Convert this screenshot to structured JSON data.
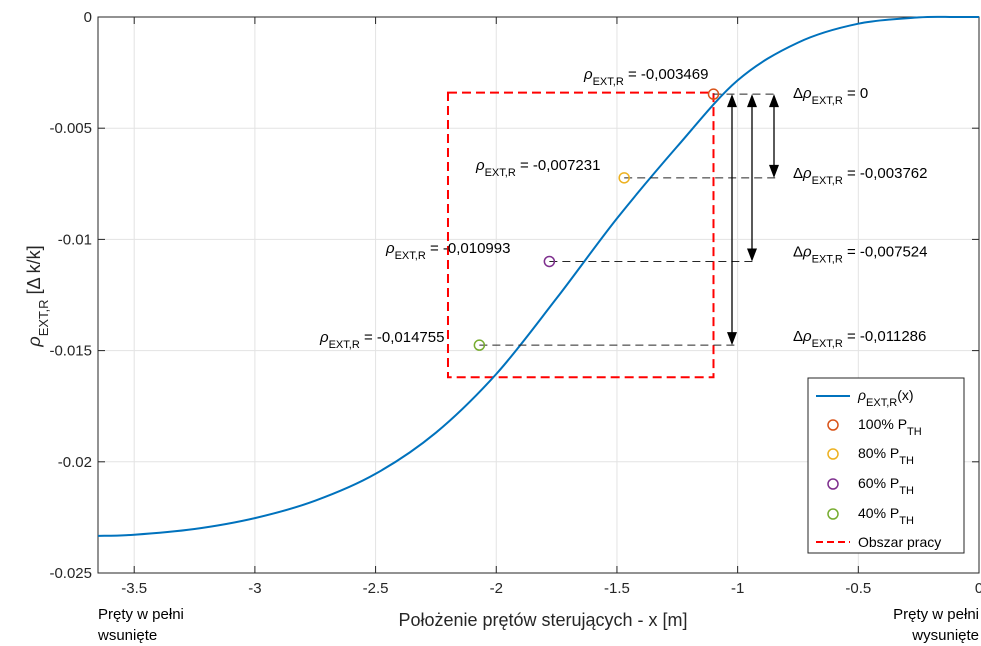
{
  "chart_data": {
    "type": "line",
    "title": "",
    "xlabel": "Położenie prętów sterujących - x [m]",
    "ylabel": "ρ_EXT,R [Δ k/k]",
    "ylabel_parts": {
      "main": "ρ",
      "sub": "EXT,R",
      "rest": " [Δ k/k]"
    },
    "xlim": [
      -3.65,
      0
    ],
    "ylim": [
      -0.025,
      0
    ],
    "xticks": [
      -3.5,
      -3,
      -2.5,
      -2,
      -1.5,
      -1,
      -0.5,
      0
    ],
    "xtick_labels": [
      "-3.5",
      "-3",
      "-2.5",
      "-2",
      "-1.5",
      "-1",
      "-0.5",
      "0"
    ],
    "yticks": [
      0,
      -0.005,
      -0.01,
      -0.015,
      -0.02,
      -0.025
    ],
    "ytick_labels": [
      "0",
      "-0.005",
      "-0.01",
      "-0.015",
      "-0.02",
      "-0.025"
    ],
    "grid": true,
    "x_end_labels": {
      "left": [
        "Pręty w pełni",
        "wsunięte"
      ],
      "right": [
        "Pręty w pełni",
        "wysunięte"
      ]
    },
    "curve": {
      "name": "ρ_EXT,R(x)",
      "color": "#0072BD",
      "x": [
        -3.65,
        -3.5,
        -3.25,
        -3.0,
        -2.75,
        -2.5,
        -2.25,
        -2.0,
        -1.75,
        -1.5,
        -1.25,
        -1.0,
        -0.75,
        -0.5,
        -0.25,
        -0.1,
        0.0
      ],
      "y": [
        -0.02333,
        -0.02328,
        -0.02302,
        -0.02253,
        -0.02175,
        -0.02054,
        -0.01869,
        -0.01605,
        -0.01265,
        -0.00906,
        -0.00582,
        -0.00285,
        -0.00115,
        -0.0003,
        -2e-05,
        0.0,
        0.0
      ]
    },
    "points": [
      {
        "name": "100% P",
        "sub": "TH",
        "x": -1.1,
        "y": -0.003469,
        "color": "#D95319",
        "label": "ρ_EXT,R = -0,003469",
        "value_text": " = -0,003469",
        "delta_text": " = 0"
      },
      {
        "name": "80% P",
        "sub": "TH",
        "x": -1.47,
        "y": -0.007231,
        "color": "#EDB120",
        "label": "ρ_EXT,R = -0,007231",
        "value_text": " = -0,007231",
        "delta_text": " = -0,003762"
      },
      {
        "name": "60% P",
        "sub": "TH",
        "x": -1.78,
        "y": -0.010993,
        "color": "#7E2F8E",
        "label": "ρ_EXT,R = -0,010993",
        "value_text": " = -0,010993",
        "delta_text": " = -0,007524"
      },
      {
        "name": "40% P",
        "sub": "TH",
        "x": -2.07,
        "y": -0.014755,
        "color": "#77AC30",
        "label": "ρ_EXT,R = -0,014755",
        "value_text": " = -0,014755",
        "delta_text": " = -0,011286"
      }
    ],
    "work_area": {
      "name": "Obszar pracy",
      "x": [
        -2.2,
        -1.1
      ],
      "y": [
        -0.0162,
        -0.0034
      ],
      "color": "#FF0000"
    },
    "legend": {
      "placement": "bottom-right",
      "items": [
        "ρ_EXT,R(x)",
        "100% P_TH",
        "80% P_TH",
        "60% P_TH",
        "40% P_TH",
        "Obszar pracy"
      ]
    }
  }
}
